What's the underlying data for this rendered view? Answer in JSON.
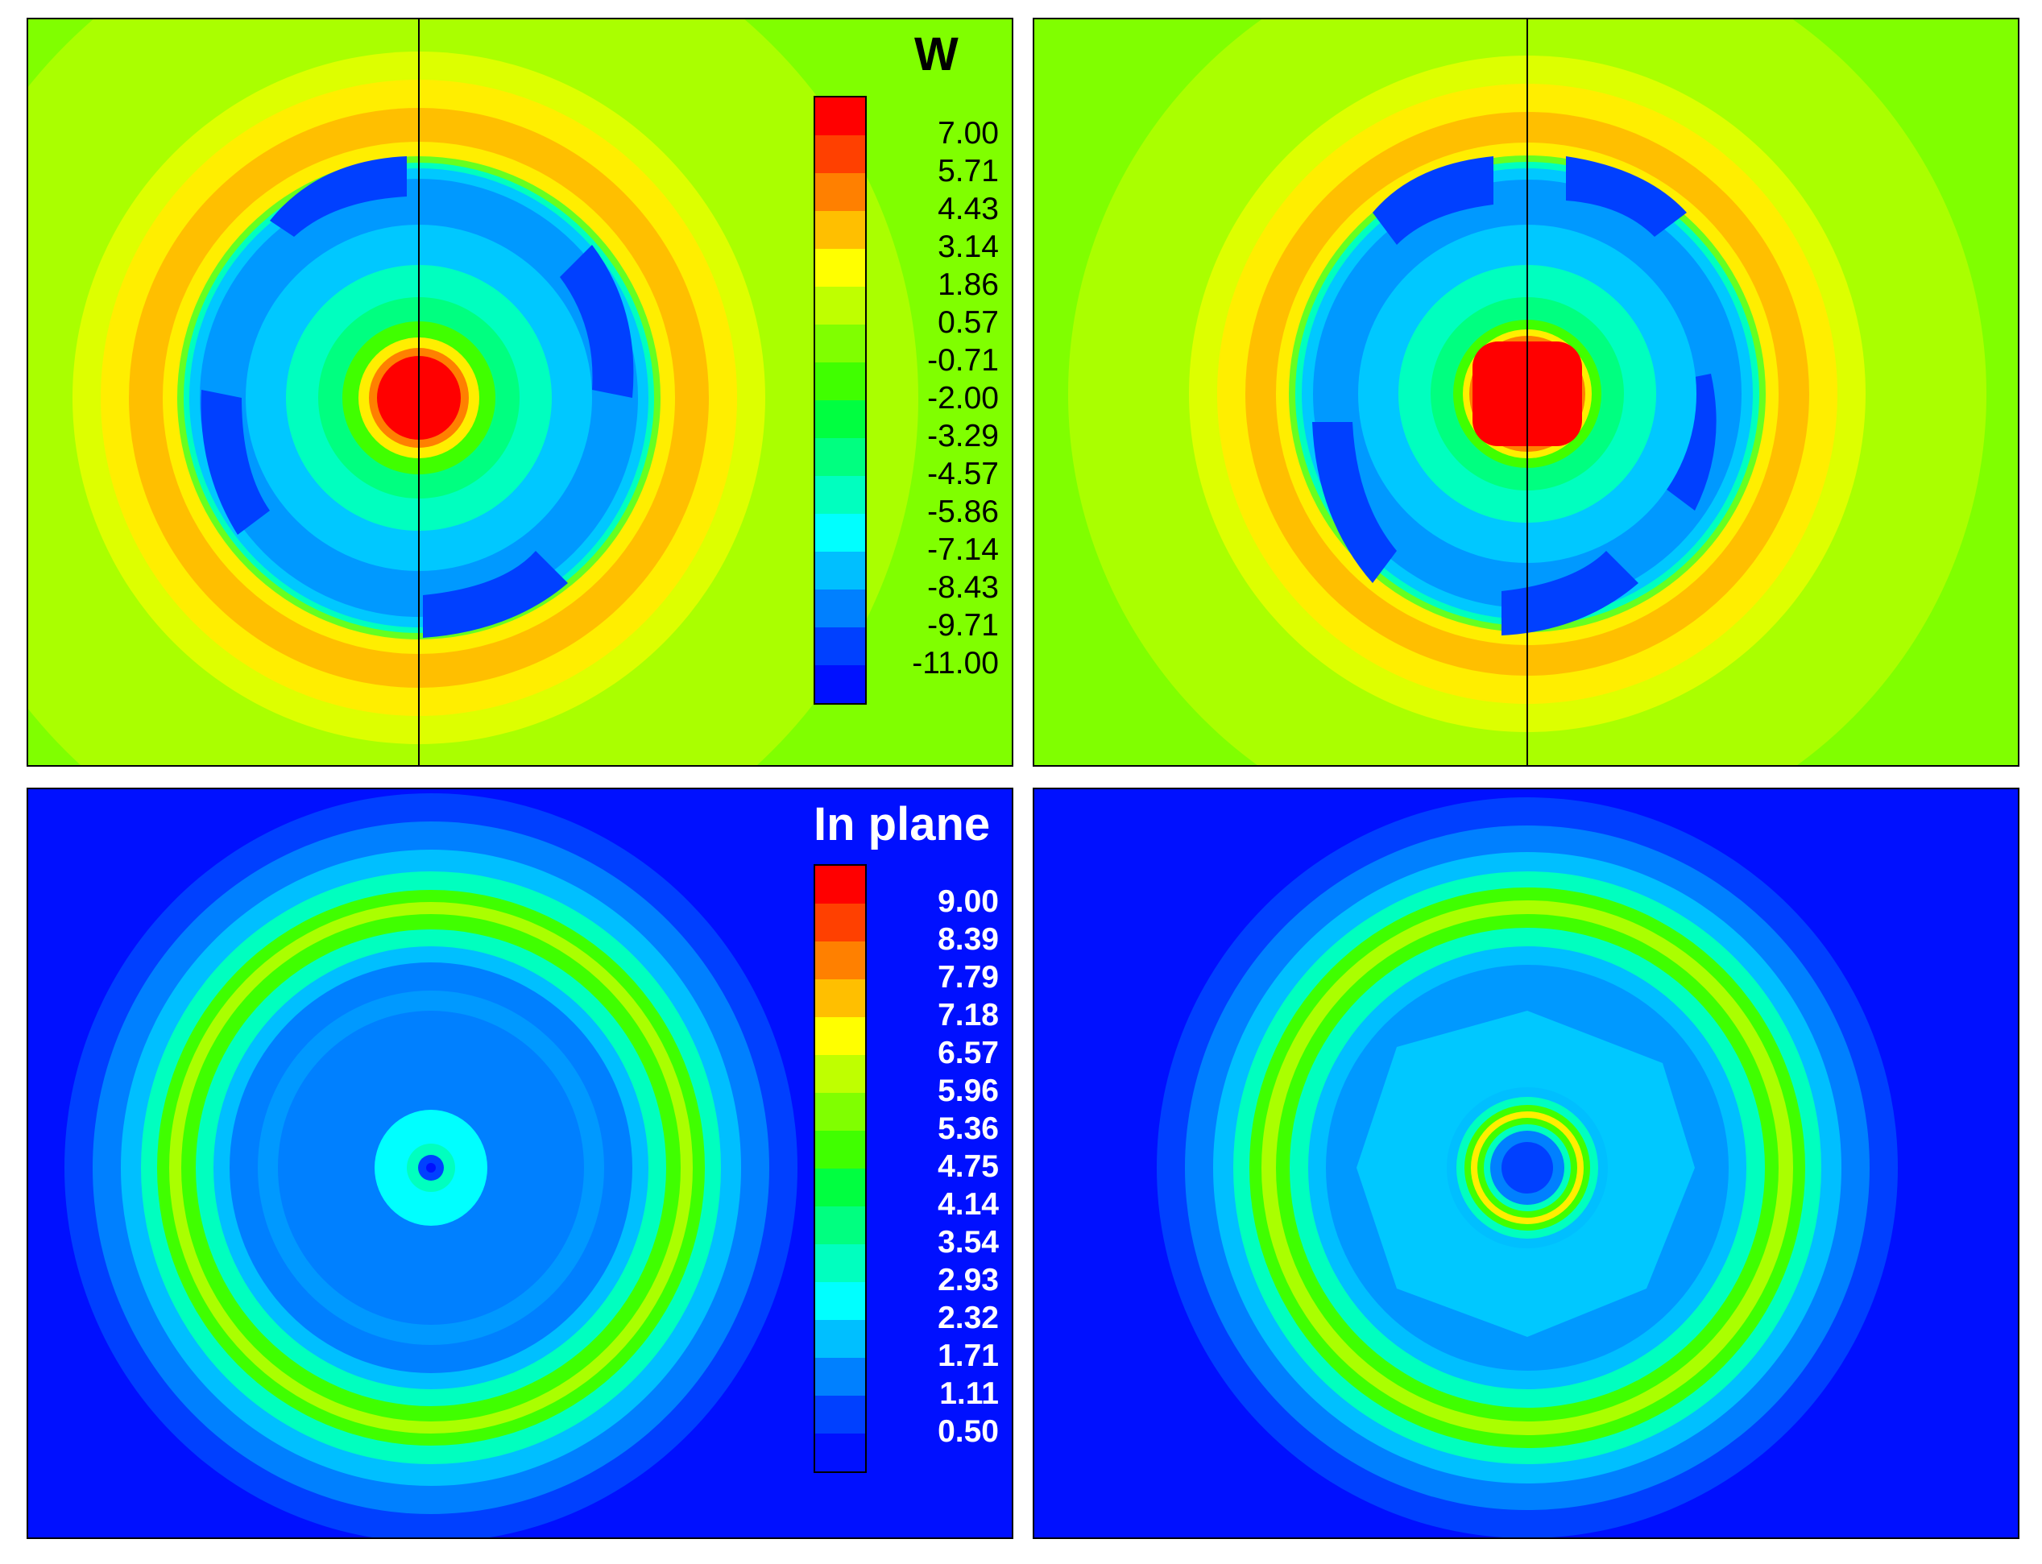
{
  "chart_data": [
    {
      "type": "heatmap",
      "panel": "top-left",
      "variable_label": "W",
      "colormap": [
        "#0010ff",
        "#0033ff",
        "#0066ff",
        "#0099ff",
        "#00c8ff",
        "#00f0ff",
        "#00ffc4",
        "#00ff86",
        "#00ff40",
        "#11ff00",
        "#55ff00",
        "#aaff00",
        "#eeff00",
        "#ffff20",
        "#ffcc00",
        "#ff9900",
        "#ff6600",
        "#ff3300",
        "#ff0000"
      ],
      "levels": [
        7.0,
        5.71,
        4.43,
        3.14,
        1.86,
        0.57,
        -0.71,
        -2.0,
        -3.29,
        -4.57,
        -5.86,
        -7.14,
        -8.43,
        -9.71,
        -11.0
      ],
      "level_labels": [
        "7.00",
        "5.71",
        "4.43",
        "3.14",
        "1.86",
        "0.57",
        "-0.71",
        "-2.00",
        "-3.29",
        "-4.57",
        "-5.86",
        "-7.14",
        "-8.43",
        "-9.71",
        "-11.00"
      ],
      "legend_colors": [
        "#ff0000",
        "#ff4000",
        "#ff8000",
        "#ffbf00",
        "#ffff00",
        "#bfff00",
        "#80ff00",
        "#40ff00",
        "#00ff40",
        "#00ff80",
        "#00ffbf",
        "#00ffff",
        "#00bfff",
        "#0080ff",
        "#0040ff",
        "#0010ff"
      ],
      "range": [
        -11.0,
        7.0
      ],
      "background_color": "#7fff00",
      "legend_placement": "top-right"
    },
    {
      "type": "heatmap",
      "panel": "top-right",
      "variable_label": "",
      "range": [
        -11.0,
        7.0
      ],
      "background_color": "#7fff00"
    },
    {
      "type": "heatmap",
      "panel": "bottom-left",
      "variable_label": "In plane",
      "levels": [
        9.0,
        8.39,
        7.79,
        7.18,
        6.57,
        5.96,
        5.36,
        4.75,
        4.14,
        3.54,
        2.93,
        2.32,
        1.71,
        1.11,
        0.5
      ],
      "level_labels": [
        "9.00",
        "8.39",
        "7.79",
        "7.18",
        "6.57",
        "5.96",
        "5.36",
        "4.75",
        "4.14",
        "3.54",
        "2.93",
        "2.32",
        "1.71",
        "1.11",
        "0.50"
      ],
      "legend_colors": [
        "#ff0000",
        "#ff4000",
        "#ff8000",
        "#ffbf00",
        "#ffff00",
        "#bfff00",
        "#80ff00",
        "#40ff00",
        "#00ff40",
        "#00ff80",
        "#00ffbf",
        "#00ffff",
        "#00bfff",
        "#0080ff",
        "#0040ff",
        "#0010ff"
      ],
      "range": [
        0.5,
        9.0
      ],
      "background_color": "#0010ff",
      "legend_placement": "top-right"
    },
    {
      "type": "heatmap",
      "panel": "bottom-right",
      "variable_label": "",
      "range": [
        0.5,
        9.0
      ],
      "background_color": "#0010ff"
    }
  ]
}
